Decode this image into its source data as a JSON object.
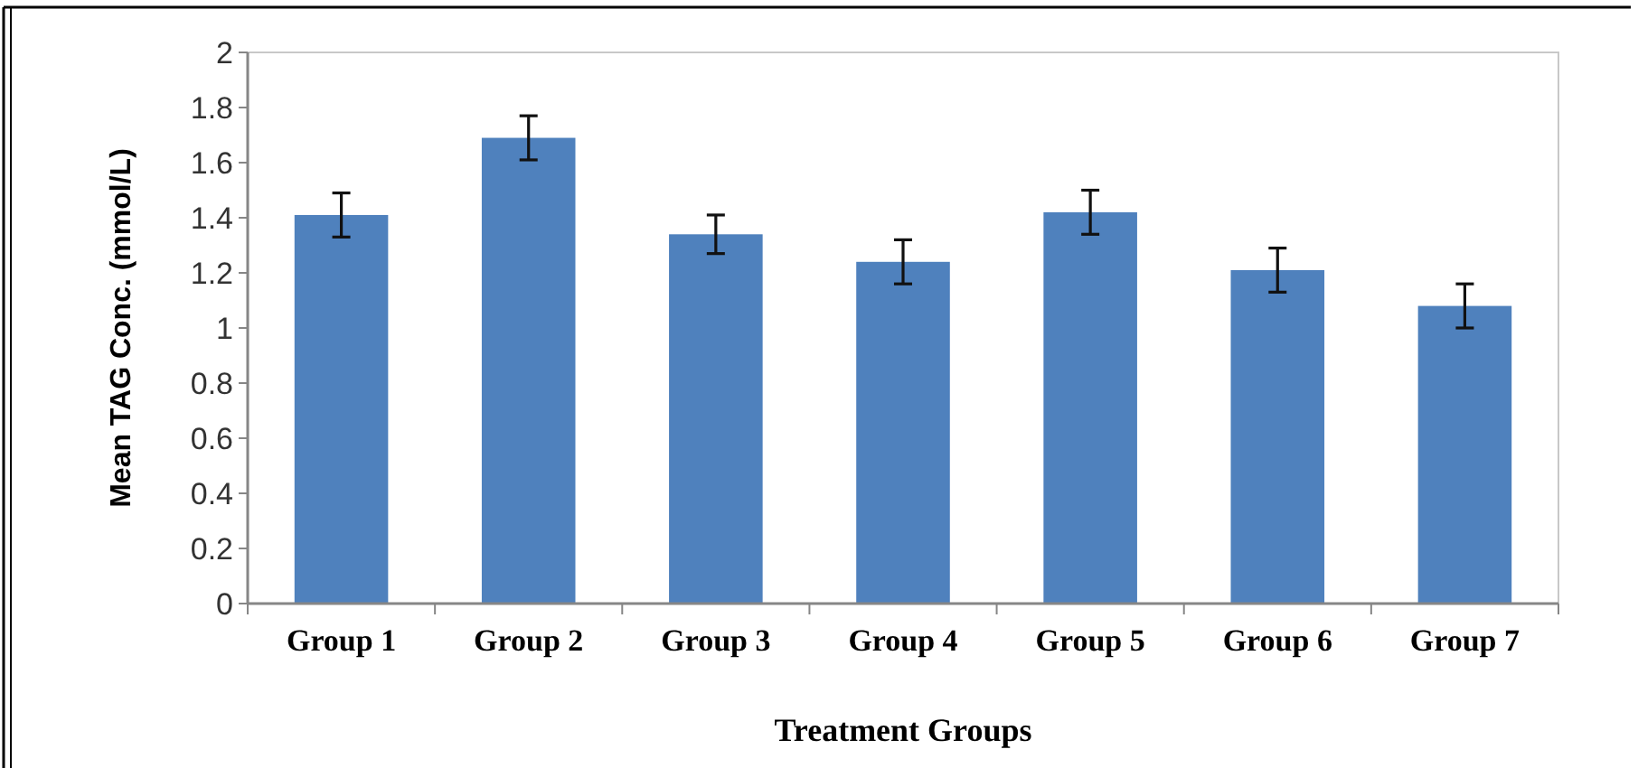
{
  "chart_data": {
    "type": "bar",
    "xlabel": "Treatment Groups",
    "ylabel": "Mean TAG Conc. (mmol/L)",
    "categories": [
      "Group 1",
      "Group 2",
      "Group 3",
      "Group 4",
      "Group 5",
      "Group 6",
      "Group 7"
    ],
    "values": [
      1.41,
      1.69,
      1.34,
      1.24,
      1.42,
      1.21,
      1.08
    ],
    "errors": [
      0.08,
      0.08,
      0.07,
      0.08,
      0.08,
      0.08,
      0.08
    ],
    "color": "#4f81bd",
    "ylim": [
      0,
      2
    ],
    "yticks": [
      0,
      {
        "value": 0.2,
        "label": "0.2"
      },
      {
        "value": 0.4,
        "label": "0.4"
      },
      {
        "value": 0.6,
        "label": "0.6"
      },
      {
        "value": 0.8,
        "label": "0.8"
      },
      1,
      {
        "value": 1.2,
        "label": "1.2"
      },
      {
        "value": 1.4,
        "label": "1.4"
      },
      {
        "value": 1.6,
        "label": "1.6"
      },
      {
        "value": 1.8,
        "label": "1.8"
      },
      2
    ],
    "grid": false
  }
}
